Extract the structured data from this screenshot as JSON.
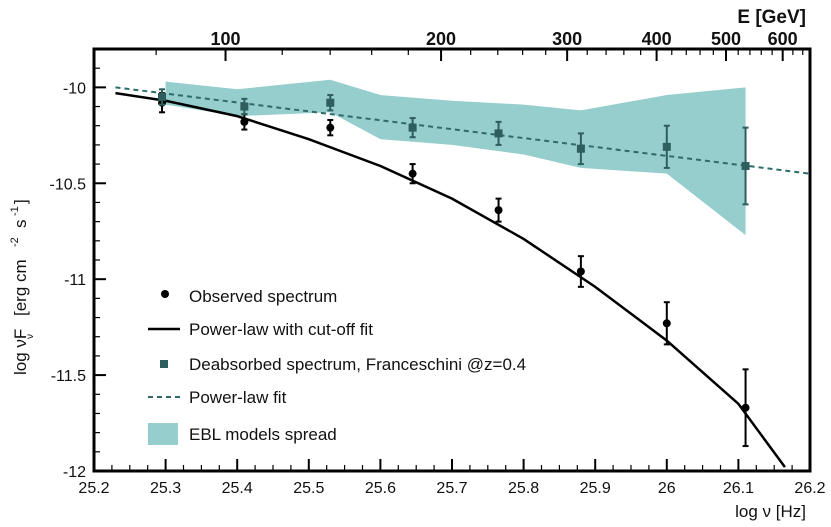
{
  "chart_data": {
    "type": "scatter",
    "title": "",
    "xlabel": "log ν  [Hz]",
    "ylabel_parts": [
      "log νF",
      "ν",
      "[erg cm",
      "-2",
      "s",
      "-1",
      "]"
    ],
    "top_axis_label": "E [GeV]",
    "xlim": [
      25.2,
      26.2
    ],
    "ylim": [
      -12,
      -9.8
    ],
    "x_ticks": [
      25.2,
      25.3,
      25.4,
      25.5,
      25.6,
      25.7,
      25.8,
      25.9,
      26,
      26.1,
      26.2
    ],
    "x_tick_labels": [
      "25.2",
      "25.3",
      "25.4",
      "25.5",
      "25.6",
      "25.7",
      "25.8",
      "25.9",
      "26",
      "26.1",
      "26.2"
    ],
    "y_ticks": [
      -12,
      -11.5,
      -11,
      -10.5,
      -10
    ],
    "y_tick_labels": [
      "-12",
      "-11.5",
      "-11",
      "-10.5",
      "-10"
    ],
    "top_ticks_gev": [
      100,
      200,
      300,
      400,
      500,
      600
    ],
    "top_tick_labels": [
      "100",
      "200",
      "300",
      "400",
      "500",
      "600"
    ],
    "series": [
      {
        "name": "Observed spectrum",
        "kind": "points",
        "marker": "circle",
        "color": "#000000",
        "x": [
          25.295,
          25.41,
          25.53,
          25.645,
          25.765,
          25.88,
          26.0,
          26.11
        ],
        "y": [
          -10.08,
          -10.18,
          -10.21,
          -10.45,
          -10.64,
          -10.96,
          -11.23,
          -11.67
        ],
        "err": [
          0.05,
          0.04,
          0.04,
          0.05,
          0.06,
          0.08,
          0.11,
          0.2
        ]
      },
      {
        "name": "Power-law with cut-off fit",
        "kind": "line",
        "style": "solid",
        "color": "#000000",
        "x": [
          25.23,
          25.3,
          25.4,
          25.5,
          25.6,
          25.7,
          25.8,
          25.9,
          26.0,
          26.1,
          26.165
        ],
        "y": [
          -10.03,
          -10.07,
          -10.15,
          -10.27,
          -10.41,
          -10.58,
          -10.79,
          -11.04,
          -11.32,
          -11.65,
          -11.98
        ]
      },
      {
        "name": "Deabsorbed spectrum, Franceschini @z=0.4",
        "kind": "points",
        "marker": "square",
        "color": "#2e5e5e",
        "x": [
          25.295,
          25.41,
          25.53,
          25.645,
          25.765,
          25.88,
          26.0,
          26.11
        ],
        "y": [
          -10.05,
          -10.1,
          -10.08,
          -10.21,
          -10.24,
          -10.32,
          -10.31,
          -10.41
        ],
        "err": [
          0.04,
          0.04,
          0.04,
          0.05,
          0.06,
          0.08,
          0.11,
          0.2
        ]
      },
      {
        "name": "Power-law fit",
        "kind": "line",
        "style": "dashed",
        "color": "#2e6b6b",
        "x": [
          25.23,
          26.2
        ],
        "y": [
          -10.0,
          -10.45
        ]
      },
      {
        "name": "EBL models spread",
        "kind": "band",
        "color": "#96cdcd",
        "x": [
          25.3,
          25.4,
          25.53,
          25.6,
          25.7,
          25.8,
          25.88,
          26.0,
          26.11
        ],
        "upper": [
          -9.97,
          -10.01,
          -9.96,
          -10.04,
          -10.07,
          -10.09,
          -10.12,
          -10.04,
          -10.0
        ],
        "lower": [
          -10.09,
          -10.15,
          -10.13,
          -10.27,
          -10.3,
          -10.35,
          -10.42,
          -10.45,
          -10.77
        ]
      }
    ],
    "legend": {
      "position": "lower-left",
      "entries": [
        "Observed spectrum",
        "Power-law with cut-off fit",
        "Deabsorbed spectrum, Franceschini @z=0.4",
        "Power-law fit",
        "EBL models spread"
      ]
    }
  }
}
